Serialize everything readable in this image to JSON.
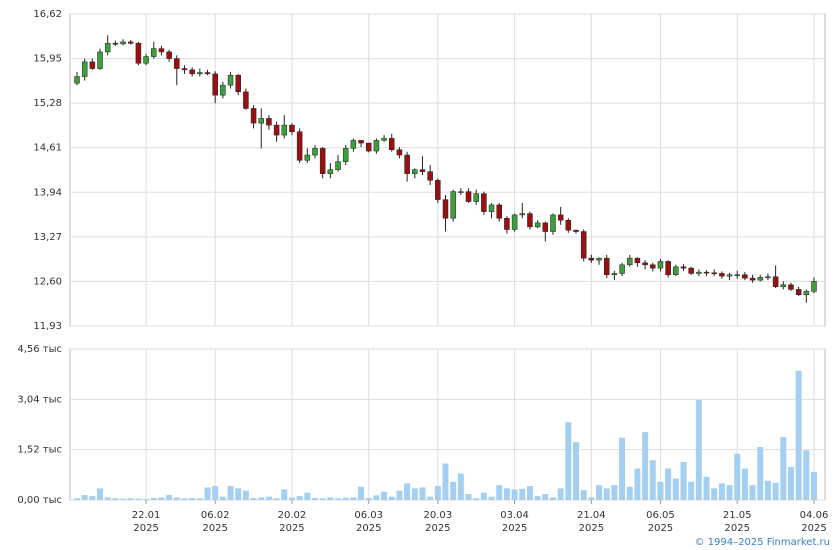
{
  "chart_data": [
    {
      "type": "candlestick",
      "up_color": "#3c9e3c",
      "down_color": "#9a1010",
      "grid": true,
      "ylim": [
        11.93,
        16.62
      ],
      "yticks": [
        {
          "value": 11.93,
          "label": "11,93"
        },
        {
          "value": 12.6,
          "label": "12,60"
        },
        {
          "value": 13.27,
          "label": "13,27"
        },
        {
          "value": 13.94,
          "label": "13,94"
        },
        {
          "value": 14.61,
          "label": "14,61"
        },
        {
          "value": 15.28,
          "label": "15,28"
        },
        {
          "value": 15.95,
          "label": "15,95"
        },
        {
          "value": 16.62,
          "label": "16,62"
        }
      ],
      "open": [
        15.58,
        15.68,
        15.9,
        15.8,
        16.05,
        16.18,
        16.17,
        16.2,
        16.18,
        15.88,
        15.98,
        16.1,
        16.05,
        15.95,
        15.8,
        15.78,
        15.72,
        15.74,
        15.72,
        15.4,
        15.55,
        15.7,
        15.45,
        15.2,
        14.98,
        15.05,
        14.95,
        14.8,
        14.95,
        14.85,
        14.42,
        14.5,
        14.6,
        14.22,
        14.28,
        14.4,
        14.6,
        14.72,
        14.68,
        14.56,
        14.72,
        14.75,
        14.58,
        14.5,
        14.22,
        14.28,
        14.25,
        14.12,
        13.83,
        13.55,
        13.95,
        13.95,
        13.8,
        13.92,
        13.65,
        13.75,
        13.55,
        13.38,
        13.6,
        13.62,
        13.42,
        13.48,
        13.35,
        13.6,
        13.52,
        13.37,
        13.35,
        12.95,
        12.92,
        12.95,
        12.7,
        12.72,
        12.85,
        12.95,
        12.88,
        12.85,
        12.8,
        12.9,
        12.7,
        12.82,
        12.8,
        12.72,
        12.74,
        12.73,
        12.72,
        12.68,
        12.7,
        12.7,
        12.65,
        12.62,
        12.66,
        12.67,
        12.52,
        12.55,
        12.48,
        12.4,
        12.45
      ],
      "high": [
        15.75,
        15.95,
        15.95,
        16.1,
        16.3,
        16.22,
        16.24,
        16.23,
        16.2,
        16.02,
        16.2,
        16.14,
        16.08,
        16.0,
        15.85,
        15.82,
        15.8,
        15.78,
        15.76,
        15.6,
        15.75,
        15.72,
        15.5,
        15.25,
        15.2,
        15.1,
        15.0,
        15.1,
        14.98,
        14.9,
        14.6,
        14.65,
        14.62,
        14.38,
        14.5,
        14.65,
        14.75,
        14.72,
        14.68,
        14.75,
        14.8,
        14.82,
        14.62,
        14.55,
        14.3,
        14.48,
        14.35,
        14.15,
        13.9,
        13.98,
        14.0,
        14.0,
        13.98,
        13.95,
        13.78,
        13.78,
        13.58,
        13.62,
        13.78,
        13.65,
        13.52,
        13.5,
        13.62,
        13.72,
        13.55,
        13.38,
        13.38,
        13.0,
        12.96,
        13.0,
        12.76,
        12.88,
        13.0,
        12.96,
        12.92,
        12.88,
        12.94,
        12.92,
        12.85,
        12.86,
        12.82,
        12.78,
        12.77,
        12.78,
        12.75,
        12.73,
        12.76,
        12.74,
        12.7,
        12.7,
        12.72,
        12.84,
        12.6,
        12.58,
        12.52,
        12.48,
        12.66
      ],
      "low": [
        15.55,
        15.62,
        15.78,
        15.78,
        16.0,
        16.14,
        16.15,
        16.16,
        15.85,
        15.85,
        15.95,
        16.0,
        15.9,
        15.55,
        15.72,
        15.68,
        15.68,
        15.7,
        15.28,
        15.35,
        15.5,
        15.4,
        15.18,
        14.9,
        14.6,
        14.88,
        14.7,
        14.75,
        14.8,
        14.38,
        14.38,
        14.45,
        14.15,
        14.15,
        14.25,
        14.35,
        14.55,
        14.62,
        14.54,
        14.52,
        14.7,
        14.55,
        14.45,
        14.1,
        14.15,
        14.2,
        14.05,
        13.78,
        13.35,
        13.5,
        13.9,
        13.78,
        13.75,
        13.6,
        13.55,
        13.5,
        13.32,
        13.35,
        13.55,
        13.38,
        13.4,
        13.2,
        13.3,
        13.45,
        13.33,
        13.32,
        12.9,
        12.88,
        12.85,
        12.65,
        12.62,
        12.68,
        12.82,
        12.82,
        12.78,
        12.75,
        12.75,
        12.66,
        12.68,
        12.76,
        12.7,
        12.68,
        12.68,
        12.68,
        12.64,
        12.62,
        12.64,
        12.62,
        12.58,
        12.6,
        12.62,
        12.5,
        12.48,
        12.46,
        12.38,
        12.28,
        12.42
      ],
      "close": [
        15.68,
        15.9,
        15.8,
        16.05,
        16.18,
        16.17,
        16.2,
        16.18,
        15.88,
        15.98,
        16.1,
        16.05,
        15.95,
        15.8,
        15.78,
        15.72,
        15.74,
        15.72,
        15.4,
        15.55,
        15.7,
        15.45,
        15.2,
        14.98,
        15.05,
        14.95,
        14.8,
        14.95,
        14.85,
        14.42,
        14.5,
        14.6,
        14.22,
        14.28,
        14.4,
        14.6,
        14.72,
        14.68,
        14.56,
        14.72,
        14.75,
        14.58,
        14.5,
        14.22,
        14.28,
        14.25,
        14.12,
        13.83,
        13.55,
        13.95,
        13.95,
        13.8,
        13.92,
        13.65,
        13.75,
        13.55,
        13.38,
        13.6,
        13.62,
        13.42,
        13.48,
        13.35,
        13.6,
        13.52,
        13.37,
        13.35,
        12.95,
        12.92,
        12.95,
        12.7,
        12.72,
        12.85,
        12.95,
        12.88,
        12.85,
        12.8,
        12.9,
        12.7,
        12.82,
        12.8,
        12.72,
        12.74,
        12.73,
        12.72,
        12.68,
        12.7,
        12.7,
        12.65,
        12.62,
        12.66,
        12.67,
        12.52,
        12.55,
        12.48,
        12.4,
        12.45,
        12.6
      ]
    },
    {
      "type": "bar",
      "color": "#a3d0f2",
      "grid": true,
      "ylim": [
        0,
        4.56
      ],
      "yticks": [
        {
          "value": 0,
          "label": "0,00 тыс"
        },
        {
          "value": 1.52,
          "label": "1,52 тыс"
        },
        {
          "value": 3.04,
          "label": "3,04 тыс"
        },
        {
          "value": 4.56,
          "label": "4,56 тыс"
        }
      ],
      "categories": [
        null,
        null,
        null,
        null,
        null,
        null,
        null,
        null,
        null,
        "22.01",
        null,
        null,
        null,
        null,
        null,
        null,
        null,
        null,
        "06.02",
        null,
        null,
        null,
        null,
        null,
        null,
        null,
        null,
        null,
        "20.02",
        null,
        null,
        null,
        null,
        null,
        null,
        null,
        null,
        null,
        "06.03",
        null,
        null,
        null,
        null,
        null,
        null,
        null,
        null,
        "20.03",
        null,
        null,
        null,
        null,
        null,
        null,
        null,
        null,
        null,
        "03.04",
        null,
        null,
        null,
        null,
        null,
        null,
        null,
        null,
        null,
        "21.04",
        null,
        null,
        null,
        null,
        null,
        null,
        null,
        null,
        "06.05",
        null,
        null,
        null,
        null,
        null,
        null,
        null,
        null,
        null,
        "21.05",
        null,
        null,
        null,
        null,
        null,
        null,
        null,
        null,
        null,
        "04.06"
      ],
      "category_years": [
        null,
        null,
        null,
        null,
        null,
        null,
        null,
        null,
        null,
        "2025",
        null,
        null,
        null,
        null,
        null,
        null,
        null,
        null,
        "2025",
        null,
        null,
        null,
        null,
        null,
        null,
        null,
        null,
        null,
        "2025",
        null,
        null,
        null,
        null,
        null,
        null,
        null,
        null,
        null,
        "2025",
        null,
        null,
        null,
        null,
        null,
        null,
        null,
        null,
        "2025",
        null,
        null,
        null,
        null,
        null,
        null,
        null,
        null,
        null,
        "2025",
        null,
        null,
        null,
        null,
        null,
        null,
        null,
        null,
        null,
        "2025",
        null,
        null,
        null,
        null,
        null,
        null,
        null,
        null,
        "2025",
        null,
        null,
        null,
        null,
        null,
        null,
        null,
        null,
        null,
        "2025",
        null,
        null,
        null,
        null,
        null,
        null,
        null,
        null,
        null,
        "2025"
      ],
      "values": [
        0.05,
        0.15,
        0.12,
        0.35,
        0.08,
        0.05,
        0.04,
        0.05,
        0.04,
        0.03,
        0.06,
        0.08,
        0.15,
        0.08,
        0.05,
        0.06,
        0.05,
        0.38,
        0.42,
        0.1,
        0.42,
        0.35,
        0.28,
        0.06,
        0.08,
        0.1,
        0.05,
        0.32,
        0.07,
        0.12,
        0.22,
        0.06,
        0.05,
        0.08,
        0.05,
        0.07,
        0.08,
        0.4,
        0.06,
        0.14,
        0.25,
        0.1,
        0.28,
        0.5,
        0.35,
        0.38,
        0.1,
        0.42,
        1.1,
        0.55,
        0.8,
        0.18,
        0.05,
        0.22,
        0.1,
        0.45,
        0.35,
        0.32,
        0.34,
        0.42,
        0.12,
        0.18,
        0.08,
        0.35,
        2.35,
        1.75,
        0.3,
        0.08,
        0.45,
        0.35,
        0.45,
        1.88,
        0.4,
        0.95,
        2.05,
        1.2,
        0.55,
        0.95,
        0.65,
        1.15,
        0.55,
        3.02,
        0.7,
        0.35,
        0.5,
        0.45,
        1.4,
        0.95,
        0.45,
        1.6,
        0.58,
        0.52,
        1.9,
        1.0,
        3.9,
        1.5,
        0.85
      ]
    }
  ],
  "copyright": "© 1994–2025 Finmarket.ru"
}
